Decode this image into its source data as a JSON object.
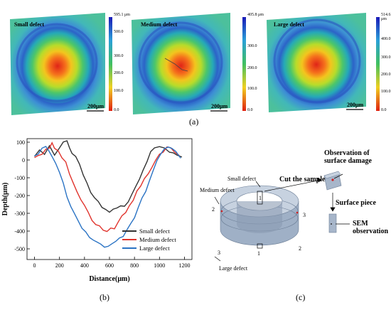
{
  "panel_a": {
    "label": "(a)",
    "maps": [
      {
        "title": "Small defect",
        "scale_bar": "200μm",
        "cbar_max": "595.1 μm",
        "cbar_ticks": [
          "500.0",
          "300.0",
          "200.0",
          "100.0",
          "0.0"
        ]
      },
      {
        "title": "Medium defect",
        "scale_bar": "200μm",
        "cbar_max": "405.8 μm",
        "cbar_ticks": [
          "300.0",
          "200.0",
          "100.0",
          "0.0"
        ]
      },
      {
        "title": "Large defect",
        "scale_bar": "200μm",
        "cbar_max": "514.6 μm",
        "cbar_ticks": [
          "400.0",
          "300.0",
          "200.0",
          "100.0",
          "0.0"
        ]
      }
    ]
  },
  "panel_b": {
    "label": "(b)"
  },
  "panel_c": {
    "label": "(c)",
    "texts": {
      "small_defect": "Small defect",
      "medium_defect": "Medium defect",
      "large_defect": "Large defect",
      "cut_sample": "Cut the sample",
      "obs1": "Observation of",
      "obs2": "surface damage",
      "surface_piece": "Surface piece",
      "sem1": "SEM",
      "sem2": "observation",
      "n1a": "1",
      "n1b": "1",
      "n2a": "2",
      "n2b": "2",
      "n3a": "3",
      "n3b": "3"
    }
  },
  "chart_data": {
    "type": "line",
    "xlabel": "Distance(μm)",
    "ylabel": "Depth(μm)",
    "xlim": [
      -60,
      1260
    ],
    "ylim": [
      -560,
      120
    ],
    "xticks": [
      0,
      200,
      400,
      600,
      800,
      1000,
      1200
    ],
    "yticks": [
      100,
      0,
      -100,
      -200,
      -300,
      -400,
      -500
    ],
    "legend_position": "bottom-right",
    "series": [
      {
        "name": "Small defect",
        "color": "#333333",
        "x": [
          0,
          40,
          80,
          120,
          160,
          200,
          230,
          260,
          280,
          300,
          330,
          360,
          390,
          420,
          450,
          480,
          510,
          540,
          570,
          600,
          630,
          660,
          690,
          720,
          750,
          780,
          810,
          840,
          870,
          900,
          930,
          960,
          1000,
          1040,
          1080,
          1110,
          1140,
          1180
        ],
        "y": [
          20,
          40,
          30,
          70,
          20,
          60,
          90,
          105,
          80,
          45,
          20,
          -20,
          -70,
          -130,
          -180,
          -220,
          -250,
          -275,
          -290,
          -300,
          -290,
          -280,
          -270,
          -250,
          -220,
          -180,
          -140,
          -90,
          -40,
          0,
          30,
          55,
          70,
          60,
          40,
          30,
          10,
          0
        ]
      },
      {
        "name": "Medium defect",
        "color": "#e0332c",
        "x": [
          0,
          30,
          60,
          90,
          120,
          140,
          160,
          190,
          220,
          250,
          280,
          310,
          340,
          370,
          400,
          430,
          460,
          490,
          520,
          550,
          580,
          610,
          640,
          670,
          700,
          730,
          760,
          790,
          820,
          850,
          880,
          910,
          940,
          970,
          1000,
          1030,
          1060,
          1090,
          1120,
          1160
        ],
        "y": [
          10,
          30,
          40,
          70,
          80,
          100,
          70,
          60,
          20,
          -20,
          -80,
          -140,
          -190,
          -230,
          -270,
          -300,
          -330,
          -350,
          -370,
          -390,
          -400,
          -380,
          -370,
          -360,
          -330,
          -300,
          -270,
          -230,
          -190,
          -150,
          -110,
          -70,
          -30,
          10,
          40,
          60,
          80,
          70,
          40,
          20
        ]
      },
      {
        "name": "Large defect",
        "color": "#2a73c4",
        "x": [
          0,
          30,
          60,
          90,
          110,
          140,
          170,
          200,
          230,
          260,
          290,
          320,
          350,
          380,
          410,
          440,
          470,
          500,
          530,
          560,
          590,
          620,
          650,
          680,
          710,
          740,
          770,
          800,
          830,
          860,
          890,
          920,
          950,
          980,
          1010,
          1040,
          1070,
          1100,
          1130,
          1170
        ],
        "y": [
          40,
          50,
          60,
          70,
          40,
          10,
          -30,
          -80,
          -140,
          -200,
          -250,
          -300,
          -340,
          -370,
          -400,
          -430,
          -450,
          -470,
          -490,
          -500,
          -495,
          -480,
          -460,
          -440,
          -420,
          -390,
          -350,
          -310,
          -260,
          -210,
          -160,
          -110,
          -60,
          -10,
          30,
          50,
          60,
          50,
          40,
          20
        ]
      }
    ]
  }
}
